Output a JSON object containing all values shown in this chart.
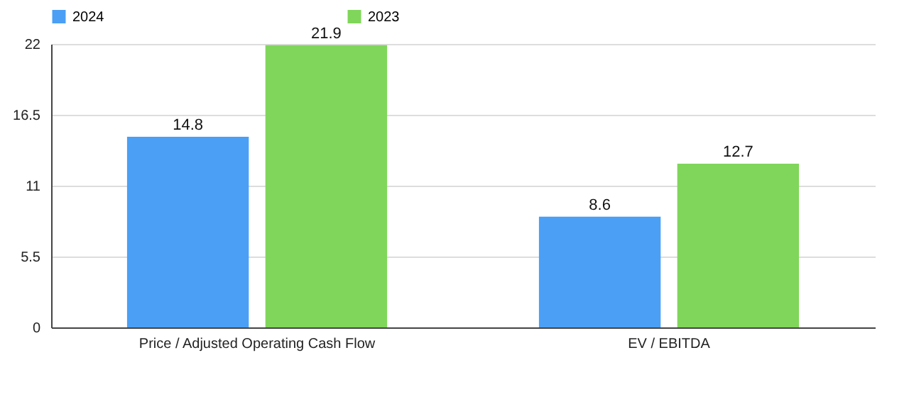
{
  "chart_data": {
    "type": "bar",
    "categories": [
      "Price / Adjusted Operating Cash Flow",
      "EV / EBITDA"
    ],
    "series": [
      {
        "name": "2024",
        "color": "#4b9ff5",
        "values": [
          14.8,
          8.6
        ]
      },
      {
        "name": "2023",
        "color": "#80d65a",
        "values": [
          21.9,
          12.7
        ]
      }
    ],
    "ylim": [
      0,
      22
    ],
    "yticks": [
      0,
      {
        "value": 5.5,
        "label": "5.5"
      },
      11,
      {
        "value": 16.5,
        "label": "16.5"
      },
      22
    ],
    "grid": "y",
    "legend": "top",
    "data_labels": true
  }
}
